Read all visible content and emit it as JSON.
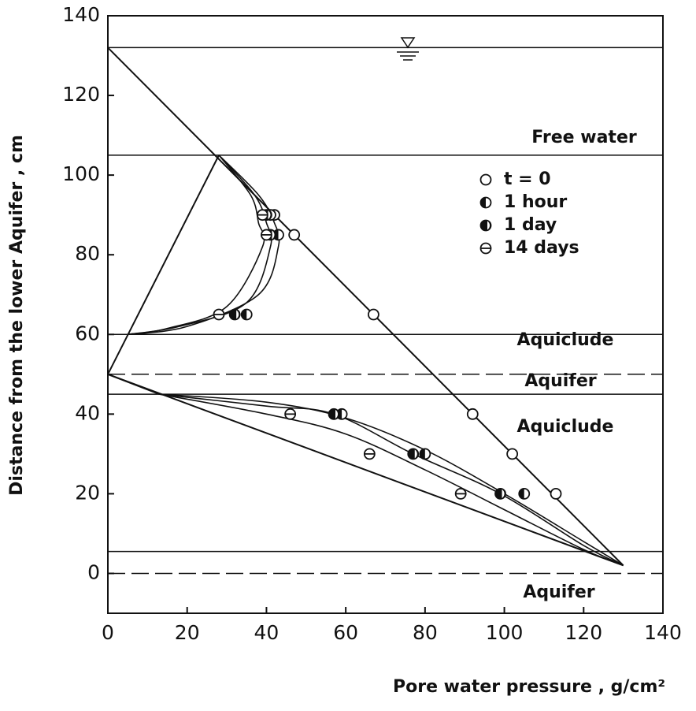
{
  "chart_data": {
    "type": "scatter",
    "xlabel": "Pore water pressure , g/cm²",
    "ylabel": "Distance from the lower Aquifer , cm",
    "xlim": [
      0,
      140
    ],
    "ylim": [
      -10,
      140
    ],
    "xticks": [
      0,
      20,
      40,
      60,
      80,
      100,
      120,
      140
    ],
    "yticks": [
      0,
      20,
      40,
      60,
      80,
      100,
      120,
      140
    ],
    "levels": [
      {
        "value": 132,
        "dashed": false
      },
      {
        "value": 105,
        "dashed": false
      },
      {
        "value": 60,
        "dashed": false
      },
      {
        "value": 50,
        "dashed": true
      },
      {
        "value": 45,
        "dashed": false
      },
      {
        "value": 5.5,
        "dashed": false
      },
      {
        "value": 0,
        "dashed": true
      }
    ],
    "annotations": [
      "Free water",
      "Aquiclude",
      "Aquifer",
      "Aquiclude",
      "Aquifer"
    ],
    "series": [
      {
        "name": "t = 0",
        "marker": "open",
        "x": [
          42,
          47,
          67,
          92,
          102,
          113
        ],
        "y": [
          90,
          85,
          65,
          40,
          30,
          20
        ]
      },
      {
        "name": "1 hour",
        "marker": "half",
        "x": [
          41,
          43,
          35,
          59,
          80,
          105
        ],
        "y": [
          90,
          85,
          65,
          40,
          30,
          20
        ]
      },
      {
        "name": "1 day",
        "marker": "filled",
        "x": [
          40,
          41,
          32,
          57,
          77,
          99
        ],
        "y": [
          90,
          85,
          65,
          40,
          30,
          20
        ]
      },
      {
        "name": "14 days",
        "marker": "bar",
        "x": [
          39,
          40,
          28,
          46,
          66,
          89
        ],
        "y": [
          90,
          85,
          65,
          40,
          30,
          20
        ]
      }
    ],
    "lines": [
      {
        "x": [
          0,
          130
        ],
        "y": [
          132,
          2
        ]
      },
      {
        "x": [
          28,
          0
        ],
        "y": [
          105,
          50
        ]
      },
      {
        "x": [
          0,
          13
        ],
        "y": [
          50,
          45
        ]
      },
      {
        "x": [
          0,
          130
        ],
        "y": [
          50,
          2
        ]
      }
    ],
    "curves": [
      {
        "x": [
          28,
          38,
          42,
          43,
          38,
          20,
          5
        ],
        "y": [
          105,
          95,
          88,
          82,
          70,
          62,
          60
        ]
      },
      {
        "x": [
          28,
          37,
          40,
          41,
          35,
          18,
          5
        ],
        "y": [
          105,
          95,
          88,
          82,
          68,
          62,
          60
        ]
      },
      {
        "x": [
          28,
          36,
          38,
          39,
          30,
          15,
          5
        ],
        "y": [
          105,
          95,
          88,
          82,
          67,
          61.5,
          60
        ]
      },
      {
        "x": [
          13,
          40,
          60,
          80,
          100,
          120,
          130
        ],
        "y": [
          45,
          43,
          39,
          31,
          20,
          8,
          2
        ]
      },
      {
        "x": [
          13,
          40,
          57,
          77,
          99,
          120,
          130
        ],
        "y": [
          45,
          42,
          40,
          30,
          20,
          7,
          2
        ]
      },
      {
        "x": [
          13,
          40,
          60,
          80,
          100,
          120,
          130
        ],
        "y": [
          45,
          40,
          35,
          26,
          16,
          6,
          2
        ]
      }
    ]
  }
}
